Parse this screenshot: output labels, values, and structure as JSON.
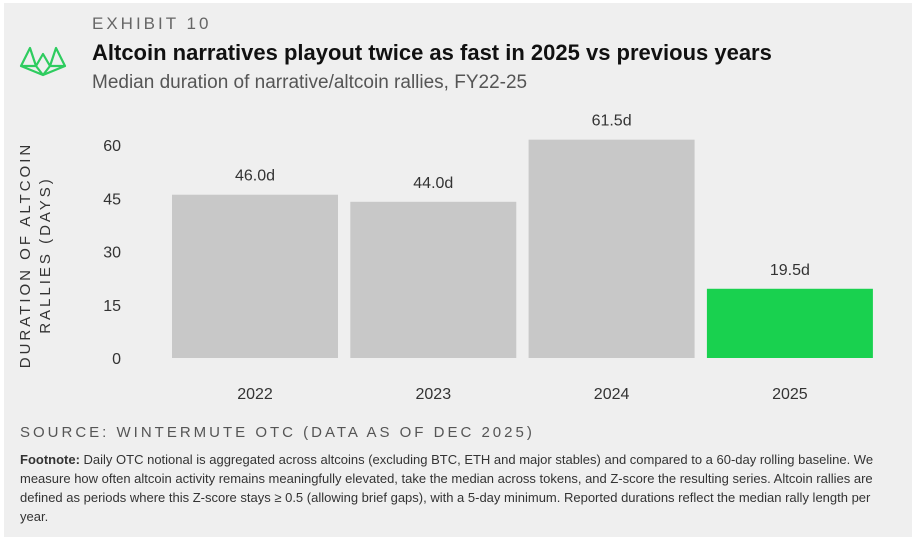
{
  "header": {
    "exhibit": "EXHIBIT 10",
    "title": "Altcoin narratives playout twice as fast in 2025 vs previous years",
    "subtitle": "Median duration of narrative/altcoin rallies, FY22-25",
    "logo_icon": "wintermute-logo-icon"
  },
  "chart_data": {
    "type": "bar",
    "categories": [
      "2022",
      "2023",
      "2024",
      "2025"
    ],
    "values": [
      46.0,
      44.0,
      61.5,
      19.5
    ],
    "data_labels": [
      "46.0d",
      "44.0d",
      "61.5d",
      "19.5d"
    ],
    "ylabel": "DURATION OF ALTCOIN RALLIES (DAYS)",
    "ylabel_lines": [
      "DURATION OF ALTCOIN",
      "RALLIES (DAYS)"
    ],
    "yticks": [
      0,
      15,
      30,
      45,
      60
    ],
    "ylim": [
      0,
      66
    ],
    "grid": false,
    "colors": [
      "#c8c8c8",
      "#c8c8c8",
      "#c8c8c8",
      "#19d14f"
    ]
  },
  "footer": {
    "source": "SOURCE: WINTERMUTE OTC (DATA AS OF DEC 2025)",
    "footnote_label": "Footnote:",
    "footnote_text": " Daily OTC notional is aggregated across altcoins (excluding BTC, ETH and major stables) and compared to a 60-day rolling baseline. We measure how often altcoin activity remains meaningfully elevated, take the median across tokens, and Z-score the resulting series. Altcoin rallies are defined as periods where this Z-score stays ≥ 0.5 (allowing brief gaps), with a 5-day minimum. Reported durations reflect the median rally length per year."
  }
}
